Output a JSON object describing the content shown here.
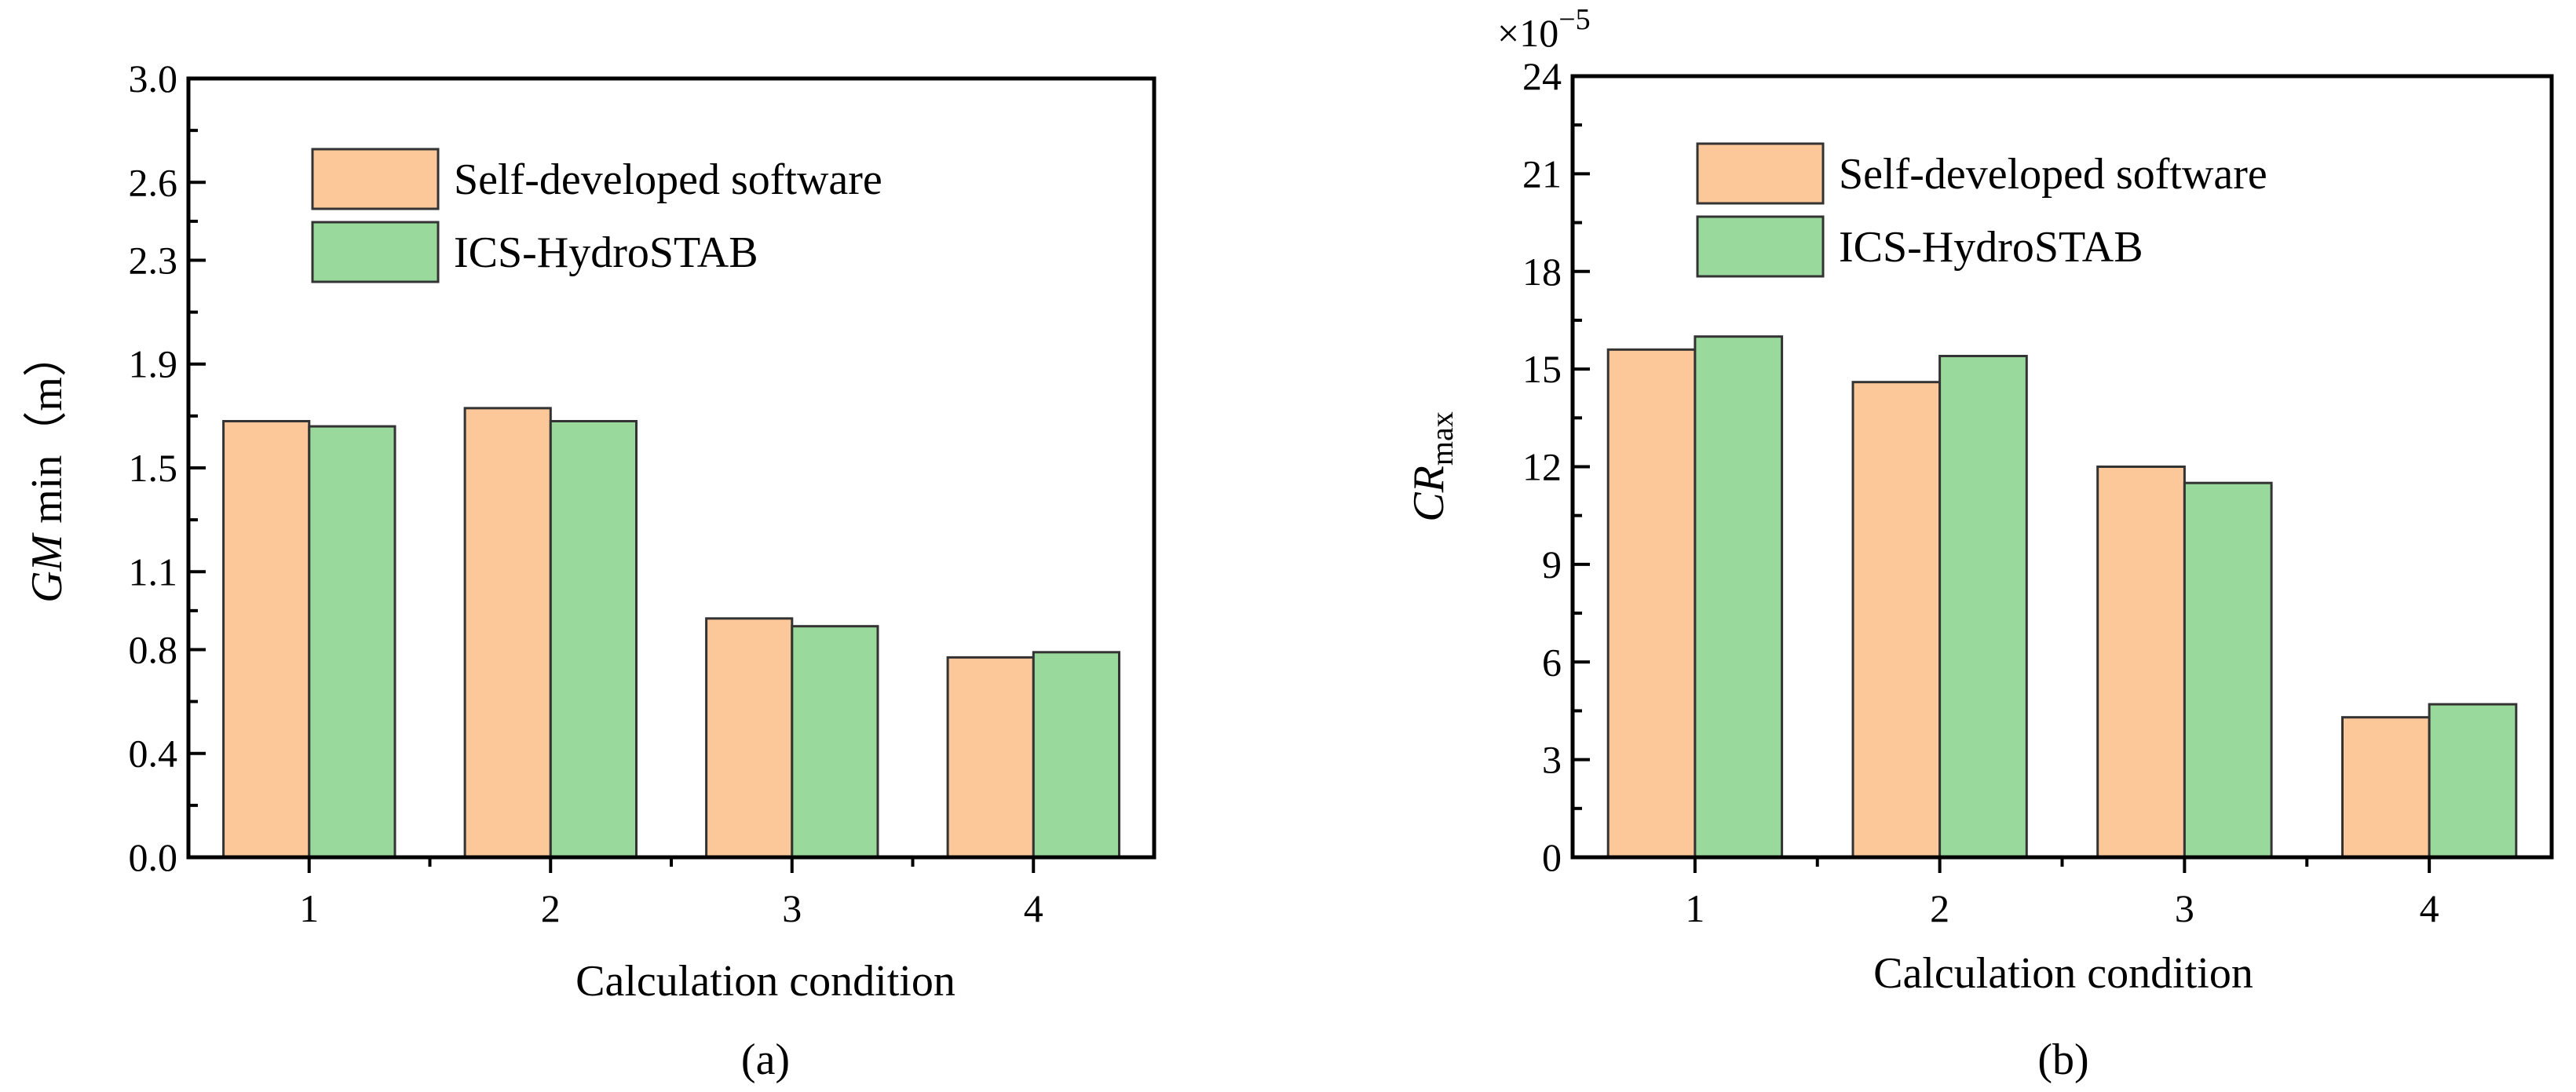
{
  "chart_data": [
    {
      "type": "bar",
      "panel_label": "(a)",
      "categories": [
        "1",
        "2",
        "3",
        "4"
      ],
      "series": [
        {
          "name": "Self-developed software",
          "values": [
            1.68,
            1.73,
            0.92,
            0.77
          ]
        },
        {
          "name": "ICS-HydroSTAB",
          "values": [
            1.66,
            1.68,
            0.89,
            0.79
          ]
        }
      ],
      "xlabel": "Calculation condition",
      "ylabel": {
        "main": "GM",
        "rest": " min（m）"
      },
      "ylim": [
        0,
        3.0
      ],
      "yticks": [
        0.0,
        0.4,
        0.8,
        1.1,
        1.5,
        1.9,
        2.3,
        2.6,
        3.0
      ],
      "ytick_labels": [
        "0.0",
        "0.4",
        "0.8",
        "1.1",
        "1.5",
        "1.9",
        "2.3",
        "2.6",
        "3.0"
      ],
      "legend_position": "top-center",
      "grid": false
    },
    {
      "type": "bar",
      "panel_label": "(b)",
      "categories": [
        "1",
        "2",
        "3",
        "4"
      ],
      "series": [
        {
          "name": "Self-developed software",
          "values": [
            15.6,
            14.6,
            12.0,
            4.3
          ]
        },
        {
          "name": "ICS-HydroSTAB",
          "values": [
            16.0,
            15.4,
            11.5,
            4.7
          ]
        }
      ],
      "xlabel": "Calculation condition",
      "ylabel": {
        "main": "CR",
        "sub": "max"
      },
      "y_multiplier": {
        "base": "×10",
        "exp": "−5"
      },
      "ylim": [
        0,
        24
      ],
      "yticks": [
        0,
        3,
        6,
        9,
        12,
        15,
        18,
        21,
        24
      ],
      "ytick_labels": [
        "0",
        "3",
        "6",
        "9",
        "12",
        "15",
        "18",
        "21",
        "24"
      ],
      "legend_position": "top-center",
      "grid": false
    }
  ],
  "colors": {
    "series": [
      "#fcc899",
      "#9ad99c"
    ],
    "frame": "#000000"
  }
}
